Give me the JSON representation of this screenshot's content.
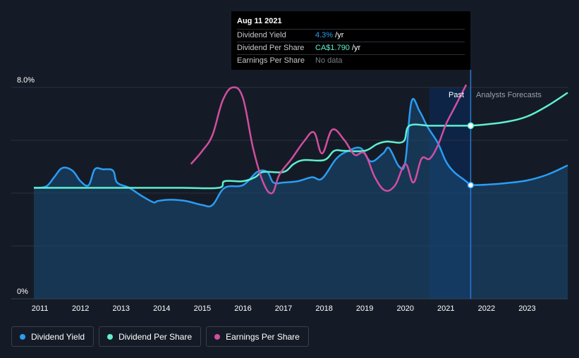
{
  "tooltip": {
    "date": "Aug 11 2021",
    "rows": [
      {
        "label": "Dividend Yield",
        "value": "4.3%",
        "suffix": " /yr"
      },
      {
        "label": "Dividend Per Share",
        "value": "CA$1.790",
        "suffix": " /yr"
      },
      {
        "label": "Earnings Per Share",
        "value": "No data",
        "suffix": ""
      }
    ]
  },
  "regions": {
    "past": "Past",
    "forecast": "Analysts Forecasts"
  },
  "legend": [
    {
      "label": "Dividend Yield",
      "color": "#2a9df4"
    },
    {
      "label": "Dividend Per Share",
      "color": "#5ff0d2"
    },
    {
      "label": "Earnings Per Share",
      "color": "#d14ea0"
    }
  ],
  "chart_data": {
    "type": "line",
    "title": "",
    "xlabel": "",
    "ylabel": "",
    "x_ticks": [
      "2011",
      "2012",
      "2013",
      "2014",
      "2015",
      "2016",
      "2017",
      "2018",
      "2019",
      "2020",
      "2021",
      "2022",
      "2023"
    ],
    "y_ticks": [
      "0%",
      "8.0%"
    ],
    "xlim": [
      2010.85,
      2024.0
    ],
    "ylim": [
      0,
      8.0
    ],
    "grid": true,
    "highlight_date": 2021.61,
    "series": [
      {
        "name": "Dividend Yield",
        "color": "#2a9df4",
        "area": true,
        "x": [
          2010.85,
          2011.15,
          2011.35,
          2011.55,
          2011.8,
          2012.0,
          2012.2,
          2012.35,
          2012.55,
          2012.8,
          2012.9,
          2013.2,
          2013.5,
          2013.8,
          2013.9,
          2014.2,
          2014.6,
          2015.0,
          2015.25,
          2015.55,
          2016.0,
          2016.35,
          2016.6,
          2016.75,
          2017.0,
          2017.35,
          2017.7,
          2017.95,
          2018.3,
          2018.6,
          2018.9,
          2019.15,
          2019.45,
          2019.6,
          2019.85,
          2020.0,
          2020.15,
          2020.35,
          2020.55,
          2020.8,
          2021.0,
          2021.2,
          2021.45,
          2021.61
        ],
        "y": [
          4.2,
          4.25,
          4.6,
          4.95,
          4.85,
          4.45,
          4.3,
          4.9,
          4.9,
          4.85,
          4.4,
          4.2,
          3.9,
          3.65,
          3.7,
          3.75,
          3.7,
          3.55,
          3.55,
          4.2,
          4.3,
          4.8,
          4.8,
          4.4,
          4.4,
          4.45,
          4.6,
          4.55,
          5.3,
          5.6,
          5.7,
          5.2,
          5.5,
          5.7,
          5.0,
          5.2,
          7.45,
          7.1,
          6.5,
          5.9,
          5.2,
          4.8,
          4.5,
          4.3
        ],
        "forecast_x": [
          2021.61,
          2022.0,
          2022.5,
          2023.0,
          2023.5,
          2024.0
        ],
        "forecast_y": [
          4.3,
          4.32,
          4.38,
          4.48,
          4.7,
          5.05
        ]
      },
      {
        "name": "Dividend Per Share",
        "color": "#5ff0d2",
        "x": [
          2010.85,
          2011.5,
          2012.5,
          2013.5,
          2014.5,
          2015.4,
          2015.55,
          2016.0,
          2016.3,
          2016.5,
          2017.0,
          2017.25,
          2017.5,
          2018.0,
          2018.25,
          2018.5,
          2019.0,
          2019.3,
          2019.55,
          2019.95,
          2020.1,
          2020.6,
          2021.0,
          2021.61
        ],
        "y": [
          4.2,
          4.2,
          4.2,
          4.2,
          4.2,
          4.2,
          4.45,
          4.45,
          4.6,
          4.8,
          4.8,
          5.1,
          5.25,
          5.25,
          5.6,
          5.6,
          5.6,
          5.85,
          5.95,
          5.95,
          6.55,
          6.55,
          6.55,
          6.55
        ],
        "forecast_x": [
          2021.61,
          2022.0,
          2022.5,
          2023.0,
          2023.5,
          2024.0
        ],
        "forecast_y": [
          6.55,
          6.6,
          6.7,
          6.9,
          7.3,
          7.8
        ]
      },
      {
        "name": "Earnings Per Share",
        "color": "#d14ea0",
        "x": [
          2014.72,
          2015.0,
          2015.25,
          2015.5,
          2015.75,
          2016.0,
          2016.25,
          2016.5,
          2016.72,
          2016.9,
          2017.2,
          2017.5,
          2017.75,
          2017.95,
          2018.2,
          2018.5,
          2018.75,
          2019.0,
          2019.25,
          2019.5,
          2019.75,
          2020.0,
          2020.2,
          2020.4,
          2020.6,
          2020.8,
          2021.0,
          2021.2,
          2021.5
        ],
        "y": [
          5.1,
          5.6,
          6.2,
          7.5,
          8.0,
          7.6,
          5.7,
          4.4,
          4.0,
          4.7,
          5.3,
          5.95,
          6.3,
          5.5,
          6.4,
          6.0,
          5.45,
          5.5,
          4.6,
          4.1,
          4.3,
          5.1,
          4.4,
          5.3,
          5.3,
          5.8,
          6.6,
          7.2,
          8.1
        ]
      }
    ]
  }
}
